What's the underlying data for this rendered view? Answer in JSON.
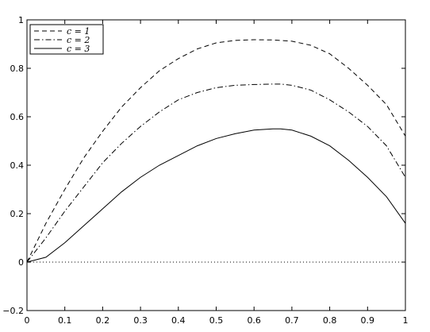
{
  "chart_data": {
    "type": "line",
    "title": "",
    "xlabel": "",
    "ylabel": "",
    "xlim": [
      0,
      1
    ],
    "ylim": [
      -0.2,
      1
    ],
    "x_ticks": [
      0,
      0.1,
      0.2,
      0.3,
      0.4,
      0.5,
      0.6,
      0.7,
      0.8,
      0.9,
      1
    ],
    "x_tick_labels": [
      "0",
      "0.1",
      "0.2",
      "0.3",
      "0.4",
      "0.5",
      "0.6",
      "0.7",
      "0.8",
      "0.9",
      "1"
    ],
    "y_ticks": [
      -0.2,
      0,
      0.2,
      0.4,
      0.6,
      0.8,
      1
    ],
    "y_tick_labels": [
      "−0.2",
      "0",
      "0.2",
      "0.4",
      "0.6",
      "0.8",
      "1"
    ],
    "grid": false,
    "legend_position": "top-left",
    "x": [
      0,
      0.05,
      0.1,
      0.15,
      0.2,
      0.25,
      0.3,
      0.35,
      0.4,
      0.45,
      0.5,
      0.55,
      0.6,
      0.65,
      0.67,
      0.7,
      0.75,
      0.8,
      0.85,
      0.9,
      0.95,
      1
    ],
    "series": [
      {
        "name": "c = 1",
        "style": "dashed",
        "values": [
          0,
          0.16,
          0.3,
          0.43,
          0.54,
          0.64,
          0.72,
          0.79,
          0.84,
          0.88,
          0.905,
          0.915,
          0.918,
          0.917,
          0.915,
          0.912,
          0.895,
          0.86,
          0.8,
          0.73,
          0.65,
          0.52
        ]
      },
      {
        "name": "c = 2",
        "style": "dashdot",
        "values": [
          0,
          0.1,
          0.21,
          0.31,
          0.41,
          0.49,
          0.56,
          0.62,
          0.67,
          0.7,
          0.72,
          0.73,
          0.733,
          0.735,
          0.735,
          0.73,
          0.71,
          0.67,
          0.62,
          0.56,
          0.48,
          0.35
        ]
      },
      {
        "name": "c = 3",
        "style": "solid",
        "values": [
          0,
          0.02,
          0.08,
          0.15,
          0.22,
          0.29,
          0.35,
          0.4,
          0.44,
          0.48,
          0.51,
          0.53,
          0.545,
          0.55,
          0.55,
          0.545,
          0.52,
          0.48,
          0.42,
          0.35,
          0.27,
          0.16
        ]
      },
      {
        "name": "",
        "style": "dotted",
        "values": [
          0,
          0,
          0,
          0,
          0,
          0,
          0,
          0,
          0,
          0,
          0,
          0,
          0,
          0,
          0,
          0,
          0,
          0,
          0,
          0,
          0,
          0
        ]
      }
    ],
    "legend": [
      "c = 1",
      "c = 2",
      "c = 3"
    ]
  }
}
